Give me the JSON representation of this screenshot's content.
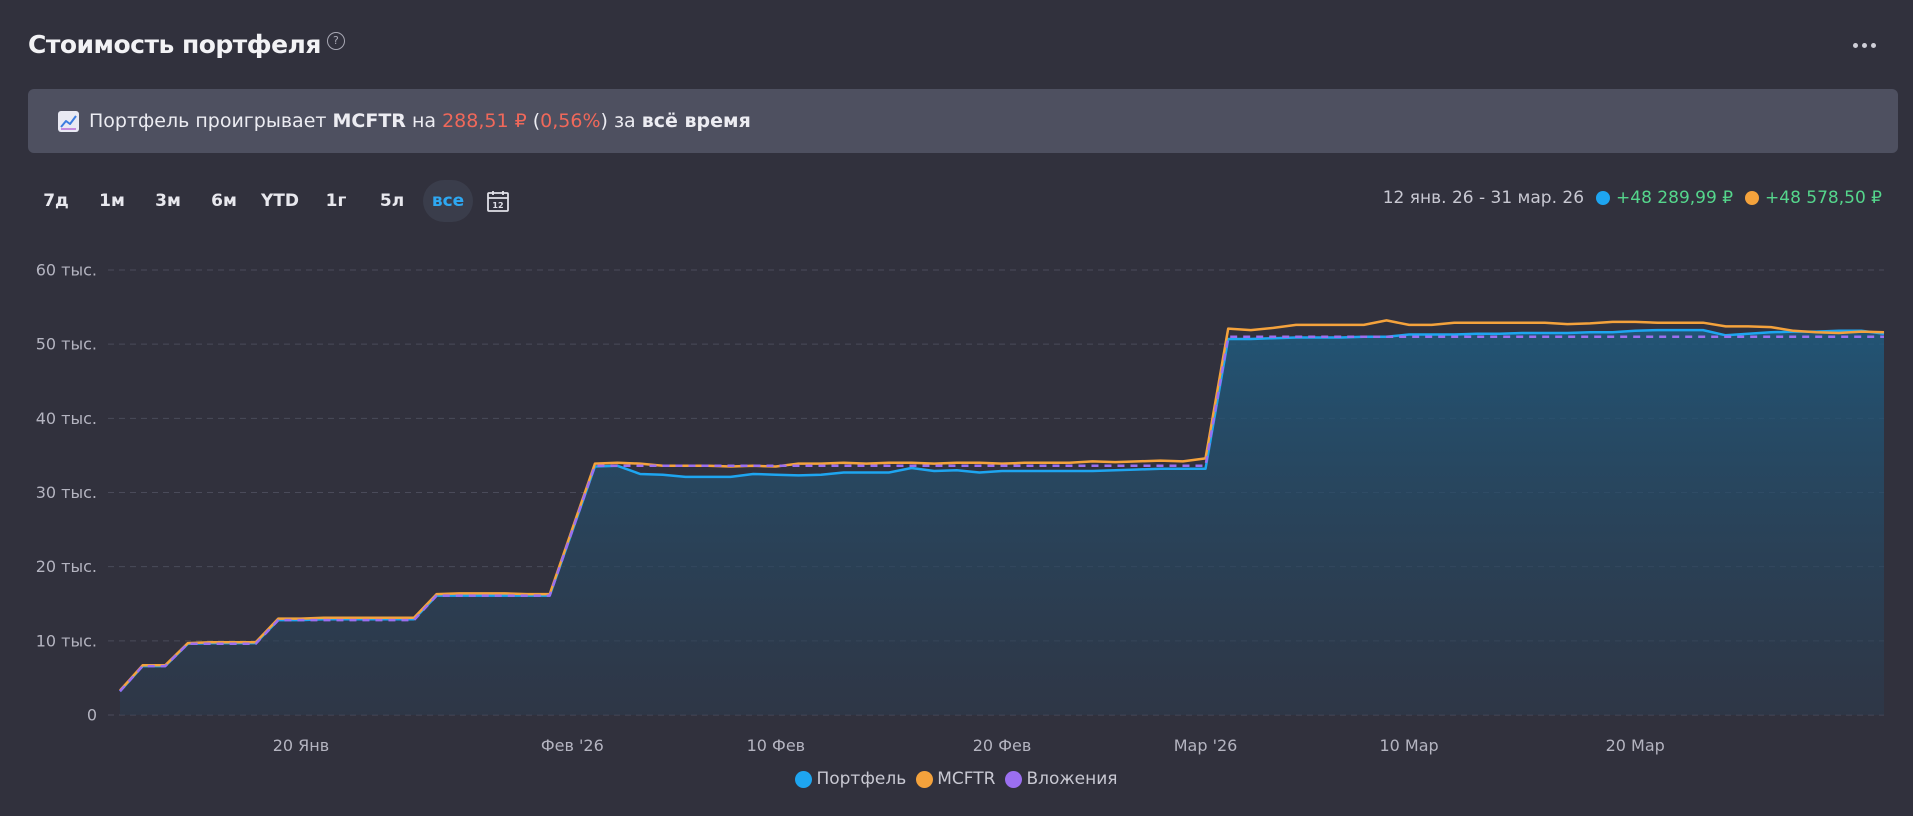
{
  "header": {
    "title": "Стоимость портфеля",
    "help_icon": "question-circle-icon",
    "menu_icon": "more-horizontal-icon"
  },
  "banner": {
    "icon": "chart-up-icon",
    "text_1": "Портфель проигрывает ",
    "benchmark": "MCFTR",
    "text_2": " на ",
    "amount": "288,51 ₽",
    "text_3": " (",
    "percent": "0,56%",
    "text_4": ") за ",
    "period": "всё время"
  },
  "periods": [
    "7д",
    "1м",
    "3м",
    "6м",
    "YTD",
    "1г",
    "5л",
    "все"
  ],
  "active_period": "все",
  "calendar_icon": "calendar-icon",
  "range": {
    "dates": "12 янв. 26 - 31 мар. 26",
    "portfolio_gain": "+48 289,99 ₽",
    "mcftr_gain": "+48 578,50 ₽"
  },
  "colors": {
    "portfolio": "#1ea5f0",
    "mcftr": "#f4a23c",
    "investments": "#9b6ff0",
    "loss": "#f0685a",
    "gain": "#55d68c",
    "active": "#2ea8f2"
  },
  "chart_data": {
    "type": "line",
    "x_type": "date",
    "x_range": [
      "2026-01-12",
      "2026-03-31"
    ],
    "ylim": [
      0,
      60000
    ],
    "y_ticks": [
      {
        "value": 0,
        "label": "0"
      },
      {
        "value": 10000,
        "label": "10 тыс."
      },
      {
        "value": 20000,
        "label": "20 тыс."
      },
      {
        "value": 30000,
        "label": "30 тыс."
      },
      {
        "value": 40000,
        "label": "40 тыс."
      },
      {
        "value": 50000,
        "label": "50 тыс."
      },
      {
        "value": 60000,
        "label": "60 тыс."
      }
    ],
    "x_ticks": [
      {
        "value": "2026-01-20",
        "label": "20 Янв"
      },
      {
        "value": "2026-02-01",
        "label": "Фев '26"
      },
      {
        "value": "2026-02-10",
        "label": "10 Фев"
      },
      {
        "value": "2026-02-20",
        "label": "20 Фев"
      },
      {
        "value": "2026-03-01",
        "label": "Мар '26"
      },
      {
        "value": "2026-03-10",
        "label": "10 Мар"
      },
      {
        "value": "2026-03-20",
        "label": "20 Мар"
      }
    ],
    "grid": true,
    "legend_position": "bottom-center",
    "series": [
      {
        "name": "Портфель",
        "style": "solid-area",
        "points": [
          [
            "2026-01-12",
            3200
          ],
          [
            "2026-01-13",
            6600
          ],
          [
            "2026-01-14",
            6600
          ],
          [
            "2026-01-15",
            9600
          ],
          [
            "2026-01-16",
            9700
          ],
          [
            "2026-01-17",
            9700
          ],
          [
            "2026-01-18",
            9700
          ],
          [
            "2026-01-19",
            12800
          ],
          [
            "2026-01-20",
            12800
          ],
          [
            "2026-01-21",
            12900
          ],
          [
            "2026-01-22",
            12900
          ],
          [
            "2026-01-23",
            12900
          ],
          [
            "2026-01-24",
            12900
          ],
          [
            "2026-01-25",
            12900
          ],
          [
            "2026-01-26",
            16100
          ],
          [
            "2026-01-27",
            16100
          ],
          [
            "2026-01-28",
            16100
          ],
          [
            "2026-01-29",
            16100
          ],
          [
            "2026-01-30",
            16100
          ],
          [
            "2026-01-31",
            16100
          ],
          [
            "2026-02-02",
            33500
          ],
          [
            "2026-02-03",
            33600
          ],
          [
            "2026-02-04",
            32500
          ],
          [
            "2026-02-05",
            32400
          ],
          [
            "2026-02-06",
            32100
          ],
          [
            "2026-02-07",
            32100
          ],
          [
            "2026-02-08",
            32100
          ],
          [
            "2026-02-09",
            32500
          ],
          [
            "2026-02-10",
            32400
          ],
          [
            "2026-02-11",
            32300
          ],
          [
            "2026-02-12",
            32400
          ],
          [
            "2026-02-13",
            32700
          ],
          [
            "2026-02-14",
            32700
          ],
          [
            "2026-02-15",
            32700
          ],
          [
            "2026-02-16",
            33300
          ],
          [
            "2026-02-17",
            32900
          ],
          [
            "2026-02-18",
            33000
          ],
          [
            "2026-02-19",
            32700
          ],
          [
            "2026-02-20",
            32900
          ],
          [
            "2026-02-21",
            32900
          ],
          [
            "2026-02-22",
            32900
          ],
          [
            "2026-02-23",
            32900
          ],
          [
            "2026-02-24",
            32900
          ],
          [
            "2026-02-25",
            33000
          ],
          [
            "2026-02-26",
            33100
          ],
          [
            "2026-02-27",
            33200
          ],
          [
            "2026-02-28",
            33200
          ],
          [
            "2026-03-01",
            33200
          ],
          [
            "2026-03-02",
            50700
          ],
          [
            "2026-03-03",
            50700
          ],
          [
            "2026-03-04",
            50800
          ],
          [
            "2026-03-05",
            50900
          ],
          [
            "2026-03-06",
            50900
          ],
          [
            "2026-03-07",
            50900
          ],
          [
            "2026-03-08",
            51000
          ],
          [
            "2026-03-09",
            51000
          ],
          [
            "2026-03-10",
            51300
          ],
          [
            "2026-03-11",
            51300
          ],
          [
            "2026-03-12",
            51300
          ],
          [
            "2026-03-13",
            51400
          ],
          [
            "2026-03-14",
            51400
          ],
          [
            "2026-03-15",
            51500
          ],
          [
            "2026-03-16",
            51500
          ],
          [
            "2026-03-17",
            51500
          ],
          [
            "2026-03-18",
            51600
          ],
          [
            "2026-03-19",
            51600
          ],
          [
            "2026-03-20",
            51800
          ],
          [
            "2026-03-21",
            51900
          ],
          [
            "2026-03-22",
            51900
          ],
          [
            "2026-03-23",
            51900
          ],
          [
            "2026-03-24",
            51200
          ],
          [
            "2026-03-25",
            51400
          ],
          [
            "2026-03-26",
            51600
          ],
          [
            "2026-03-27",
            51700
          ],
          [
            "2026-03-28",
            51700
          ],
          [
            "2026-03-29",
            51800
          ],
          [
            "2026-03-30",
            51800
          ],
          [
            "2026-03-31",
            51400
          ]
        ]
      },
      {
        "name": "MCFTR",
        "style": "solid",
        "points": [
          [
            "2026-01-12",
            3300
          ],
          [
            "2026-01-13",
            6700
          ],
          [
            "2026-01-14",
            6700
          ],
          [
            "2026-01-15",
            9700
          ],
          [
            "2026-01-16",
            9800
          ],
          [
            "2026-01-17",
            9800
          ],
          [
            "2026-01-18",
            9800
          ],
          [
            "2026-01-19",
            13000
          ],
          [
            "2026-01-20",
            13000
          ],
          [
            "2026-01-21",
            13100
          ],
          [
            "2026-01-22",
            13100
          ],
          [
            "2026-01-23",
            13100
          ],
          [
            "2026-01-24",
            13100
          ],
          [
            "2026-01-25",
            13100
          ],
          [
            "2026-01-26",
            16300
          ],
          [
            "2026-01-27",
            16400
          ],
          [
            "2026-01-28",
            16400
          ],
          [
            "2026-01-29",
            16400
          ],
          [
            "2026-01-30",
            16300
          ],
          [
            "2026-01-31",
            16300
          ],
          [
            "2026-02-02",
            33900
          ],
          [
            "2026-02-03",
            34000
          ],
          [
            "2026-02-04",
            33900
          ],
          [
            "2026-02-05",
            33600
          ],
          [
            "2026-02-06",
            33600
          ],
          [
            "2026-02-07",
            33600
          ],
          [
            "2026-02-08",
            33500
          ],
          [
            "2026-02-09",
            33600
          ],
          [
            "2026-02-10",
            33500
          ],
          [
            "2026-02-11",
            33900
          ],
          [
            "2026-02-12",
            33900
          ],
          [
            "2026-02-13",
            34000
          ],
          [
            "2026-02-14",
            33900
          ],
          [
            "2026-02-15",
            34000
          ],
          [
            "2026-02-16",
            34000
          ],
          [
            "2026-02-17",
            33900
          ],
          [
            "2026-02-18",
            34000
          ],
          [
            "2026-02-19",
            34000
          ],
          [
            "2026-02-20",
            33900
          ],
          [
            "2026-02-21",
            34000
          ],
          [
            "2026-02-22",
            34000
          ],
          [
            "2026-02-23",
            34000
          ],
          [
            "2026-02-24",
            34200
          ],
          [
            "2026-02-25",
            34100
          ],
          [
            "2026-02-26",
            34200
          ],
          [
            "2026-02-27",
            34300
          ],
          [
            "2026-02-28",
            34200
          ],
          [
            "2026-03-01",
            34600
          ],
          [
            "2026-03-02",
            52100
          ],
          [
            "2026-03-03",
            51900
          ],
          [
            "2026-03-04",
            52200
          ],
          [
            "2026-03-05",
            52600
          ],
          [
            "2026-03-06",
            52600
          ],
          [
            "2026-03-07",
            52600
          ],
          [
            "2026-03-08",
            52600
          ],
          [
            "2026-03-09",
            53200
          ],
          [
            "2026-03-10",
            52600
          ],
          [
            "2026-03-11",
            52600
          ],
          [
            "2026-03-12",
            52900
          ],
          [
            "2026-03-13",
            52900
          ],
          [
            "2026-03-14",
            52900
          ],
          [
            "2026-03-15",
            52900
          ],
          [
            "2026-03-16",
            52900
          ],
          [
            "2026-03-17",
            52700
          ],
          [
            "2026-03-18",
            52800
          ],
          [
            "2026-03-19",
            53000
          ],
          [
            "2026-03-20",
            53000
          ],
          [
            "2026-03-21",
            52900
          ],
          [
            "2026-03-22",
            52900
          ],
          [
            "2026-03-23",
            52900
          ],
          [
            "2026-03-24",
            52400
          ],
          [
            "2026-03-25",
            52400
          ],
          [
            "2026-03-26",
            52300
          ],
          [
            "2026-03-27",
            51800
          ],
          [
            "2026-03-28",
            51600
          ],
          [
            "2026-03-29",
            51500
          ],
          [
            "2026-03-30",
            51700
          ],
          [
            "2026-03-31",
            51600
          ]
        ]
      },
      {
        "name": "Вложения",
        "style": "dashed",
        "points": [
          [
            "2026-01-12",
            3200
          ],
          [
            "2026-01-13",
            6600
          ],
          [
            "2026-01-14",
            6600
          ],
          [
            "2026-01-15",
            9600
          ],
          [
            "2026-01-18",
            9600
          ],
          [
            "2026-01-19",
            12800
          ],
          [
            "2026-01-25",
            12800
          ],
          [
            "2026-01-26",
            16100
          ],
          [
            "2026-01-31",
            16100
          ],
          [
            "2026-02-02",
            33600
          ],
          [
            "2026-03-01",
            33600
          ],
          [
            "2026-03-02",
            51000
          ],
          [
            "2026-03-31",
            51000
          ]
        ]
      }
    ]
  },
  "legend": [
    {
      "label": "Портфель",
      "key": "portfolio"
    },
    {
      "label": "MCFTR",
      "key": "mcftr"
    },
    {
      "label": "Вложения",
      "key": "investments"
    }
  ]
}
